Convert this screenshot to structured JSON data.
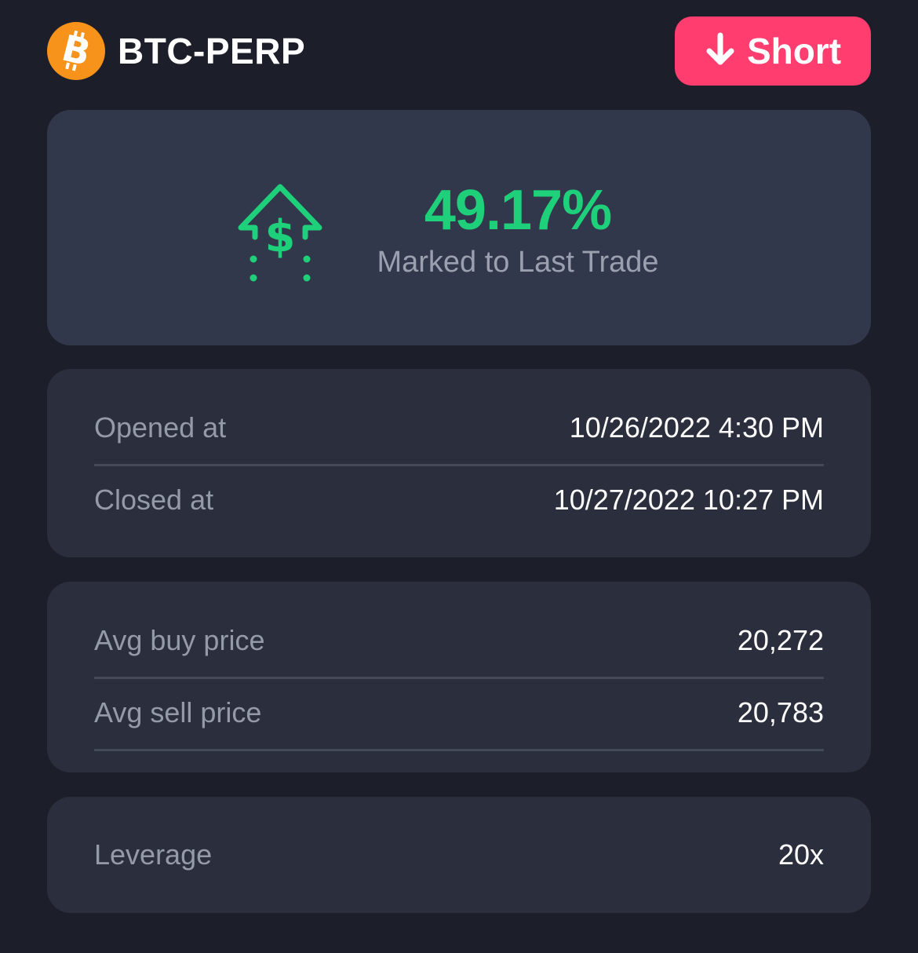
{
  "header": {
    "pair": "BTC-PERP",
    "logo_icon": "bitcoin-icon",
    "short_button": {
      "label": "Short",
      "icon": "arrow-down-icon",
      "color": "#ff3d6e"
    }
  },
  "pnl": {
    "value": "49.17%",
    "caption": "Marked to Last Trade",
    "icon": "money-up-arrow-icon",
    "color": "#1ed07a"
  },
  "times": [
    {
      "label": "Opened at",
      "value": "10/26/2022 4:30 PM"
    },
    {
      "label": "Closed at",
      "value": "10/27/2022 10:27 PM"
    }
  ],
  "prices": [
    {
      "label": "Avg buy price",
      "value": "20,272"
    },
    {
      "label": "Avg sell price",
      "value": "20,783"
    }
  ],
  "leverage": {
    "label": "Leverage",
    "value": "20x"
  }
}
